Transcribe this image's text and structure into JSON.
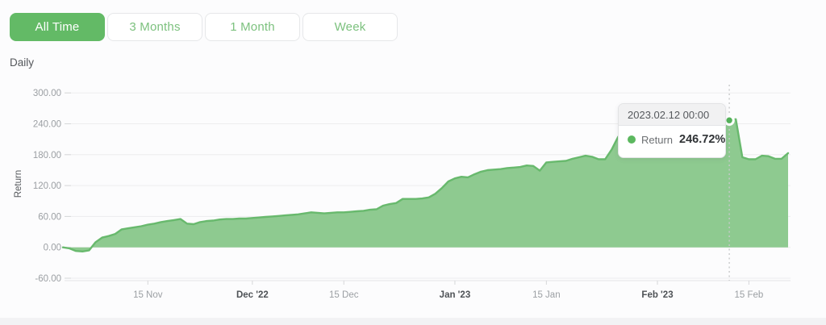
{
  "period_buttons": [
    {
      "label": "All Time",
      "active": true
    },
    {
      "label": "3 Months",
      "active": false
    },
    {
      "label": "1 Month",
      "active": false
    },
    {
      "label": "Week",
      "active": false
    }
  ],
  "frequency_label": "Daily",
  "tooltip": {
    "date": "2023.02.12 00:00",
    "series": "Return",
    "value": "246.72%"
  },
  "colors": {
    "accent_green": "#63ba66",
    "button_text_green": "#7cc17e",
    "area_fill": "#8eca90",
    "line_stroke": "#68b96d",
    "marker_fill": "#54b25a",
    "grid": "#ededee",
    "grid_tick": "#d6d7d9",
    "axis_line": "#e5e5e6",
    "axis_text": "#9b9fa3",
    "axis_text_bold": "#4e5256",
    "ylabel_text": "#55585c",
    "dotted_guide": "#c8c9cb"
  },
  "chart_data": {
    "type": "area",
    "title": "",
    "xlabel": "",
    "ylabel": "Return",
    "grid": true,
    "start_date": "2022-11-02",
    "end_date": "2023-02-21",
    "interval": "daily",
    "ylim": [
      -65,
      310
    ],
    "y_ticks": [
      "300.00",
      "240.00",
      "180.00",
      "120.00",
      "60.00",
      "0.00",
      "-60.00"
    ],
    "y_tick_values": [
      300,
      240,
      180,
      120,
      60,
      0,
      -60
    ],
    "x_ticks": [
      {
        "label": "15 Nov",
        "index": 13,
        "bold": false
      },
      {
        "label": "Dec '22",
        "index": 29,
        "bold": true
      },
      {
        "label": "15 Dec",
        "index": 43,
        "bold": false
      },
      {
        "label": "Jan '23",
        "index": 60,
        "bold": true
      },
      {
        "label": "15 Jan",
        "index": 74,
        "bold": false
      },
      {
        "label": "Feb '23",
        "index": 91,
        "bold": true
      },
      {
        "label": "15 Feb",
        "index": 105,
        "bold": false
      }
    ],
    "values": [
      0,
      -2,
      -7,
      -8,
      -6,
      10,
      19,
      22,
      26,
      35,
      37,
      39,
      41,
      44,
      46,
      49,
      51,
      53,
      55,
      46,
      45,
      49,
      51,
      52,
      54,
      55,
      55,
      56,
      56,
      57,
      58,
      59,
      60,
      61,
      62,
      63,
      64,
      66,
      68,
      67,
      66,
      67,
      68,
      68,
      69,
      70,
      71,
      73,
      74,
      81,
      84,
      86,
      94,
      94,
      94,
      95,
      97,
      104,
      115,
      128,
      134,
      137,
      136,
      142,
      147,
      150,
      151,
      152,
      154,
      155,
      156,
      159,
      158,
      149,
      165,
      166,
      167,
      168,
      172,
      175,
      178,
      176,
      171,
      171,
      190,
      215,
      222,
      226,
      229,
      231,
      230,
      236,
      238,
      240,
      242,
      240,
      243,
      244,
      243,
      245,
      244,
      245,
      246.72,
      249,
      175,
      171,
      171,
      178,
      177,
      172,
      172,
      183
    ],
    "marker": {
      "index": 102,
      "value": 246.72,
      "date": "2023.02.12 00:00"
    }
  }
}
